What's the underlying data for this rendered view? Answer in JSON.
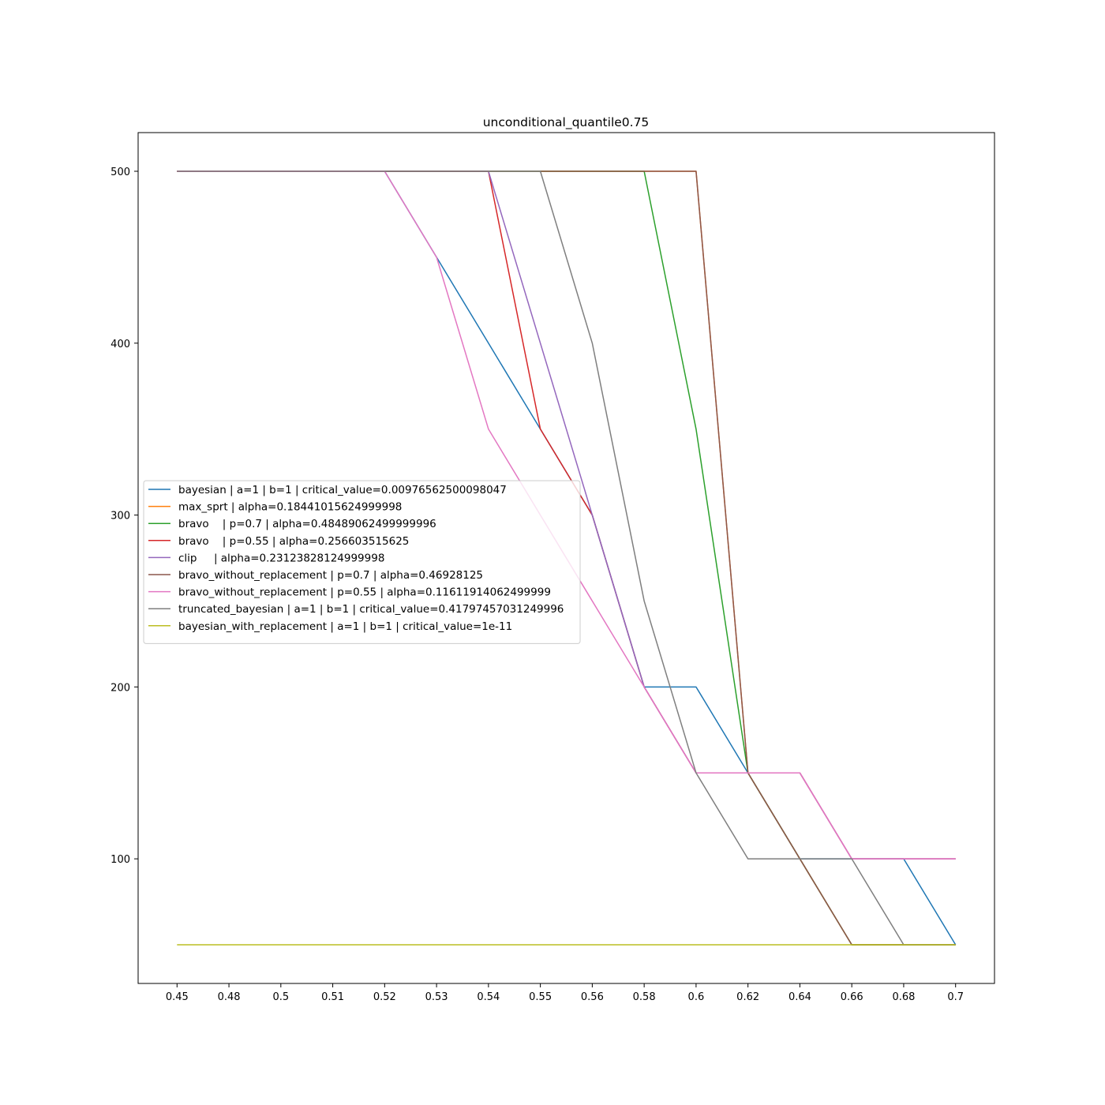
{
  "chart_data": {
    "type": "line",
    "title": "unconditional_quantile0.75",
    "xlabel": "",
    "ylabel": "",
    "x_tick_labels": [
      "0.45",
      "0.48",
      "0.5",
      "0.51",
      "0.52",
      "0.53",
      "0.54",
      "0.55",
      "0.56",
      "0.58",
      "0.6",
      "0.62",
      "0.64",
      "0.66",
      "0.68",
      "0.7"
    ],
    "y_ticks": [
      100,
      200,
      300,
      400,
      500
    ],
    "ylim": [
      27.5,
      522.5
    ],
    "grid": false,
    "legend_position": "center-left",
    "series": [
      {
        "name": "bayesian | a=1 | b=1 | critical_value=0.00976562500098047",
        "color": "#1f77b4",
        "values": [
          500,
          500,
          500,
          500,
          500,
          450,
          400,
          350,
          300,
          200,
          200,
          150,
          100,
          100,
          100,
          50
        ]
      },
      {
        "name": "max_sprt | alpha=0.18441015624999998",
        "color": "#ff7f0e",
        "values": [
          500,
          500,
          500,
          500,
          500,
          500,
          500,
          500,
          500,
          500,
          500,
          150,
          100,
          50,
          50,
          50
        ]
      },
      {
        "name": "bravo    | p=0.7 | alpha=0.48489062499999996",
        "color": "#2ca02c",
        "values": [
          500,
          500,
          500,
          500,
          500,
          500,
          500,
          500,
          500,
          500,
          350,
          150,
          100,
          50,
          50,
          50
        ]
      },
      {
        "name": "bravo    | p=0.55 | alpha=0.256603515625",
        "color": "#d62728",
        "values": [
          500,
          500,
          500,
          500,
          500,
          500,
          500,
          350,
          300,
          200,
          150,
          150,
          150,
          100,
          100,
          100
        ]
      },
      {
        "name": "clip     | alpha=0.23123828124999998",
        "color": "#9467bd",
        "values": [
          500,
          500,
          500,
          500,
          500,
          500,
          500,
          400,
          300,
          200,
          150,
          150,
          150,
          100,
          100,
          100
        ]
      },
      {
        "name": "bravo_without_replacement | p=0.7 | alpha=0.46928125",
        "color": "#8c564b",
        "values": [
          500,
          500,
          500,
          500,
          500,
          500,
          500,
          500,
          500,
          500,
          500,
          150,
          100,
          50,
          50,
          50
        ]
      },
      {
        "name": "bravo_without_replacement | p=0.55 | alpha=0.11611914062499999",
        "color": "#e377c2",
        "values": [
          500,
          500,
          500,
          500,
          500,
          450,
          350,
          300,
          250,
          200,
          150,
          150,
          150,
          100,
          100,
          100
        ]
      },
      {
        "name": "truncated_bayesian | a=1 | b=1 | critical_value=0.41797457031249996",
        "color": "#7f7f7f",
        "values": [
          500,
          500,
          500,
          500,
          500,
          500,
          500,
          500,
          400,
          250,
          150,
          100,
          100,
          100,
          50,
          50
        ]
      },
      {
        "name": "bayesian_with_replacement | a=1 | b=1 | critical_value=1e-11",
        "color": "#bcbd22",
        "values": [
          50,
          50,
          50,
          50,
          50,
          50,
          50,
          50,
          50,
          50,
          50,
          50,
          50,
          50,
          50,
          50
        ]
      }
    ]
  }
}
